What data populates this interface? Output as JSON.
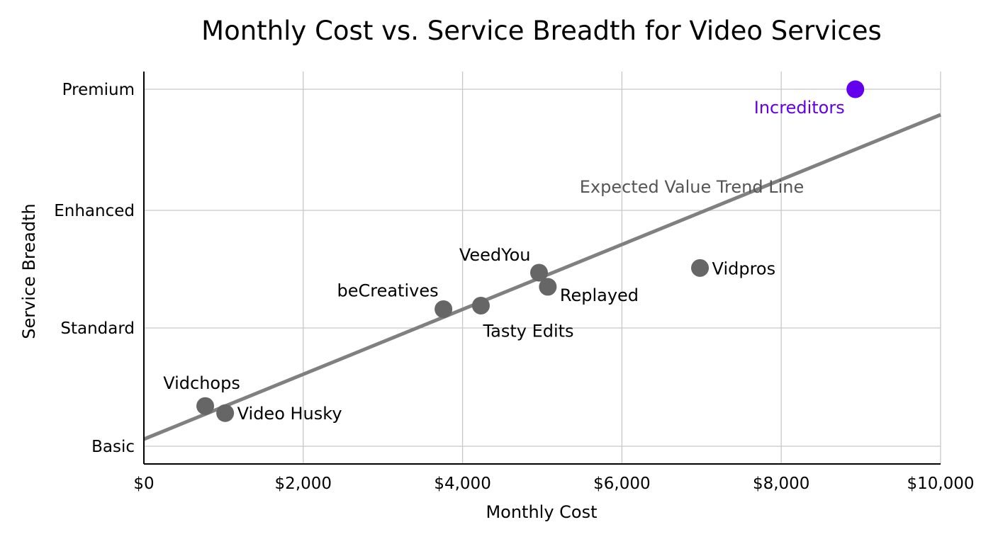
{
  "chart_data": {
    "type": "scatter",
    "title": "Monthly Cost vs. Service Breadth for Video Services",
    "xlabel": "Monthly Cost",
    "ylabel": "Service Breadth",
    "xlim": [
      0,
      10000
    ],
    "x_ticks": [
      0,
      2000,
      4000,
      6000,
      8000,
      10000
    ],
    "x_tick_labels": [
      "$0",
      "$2,000",
      "$4,000",
      "$6,000",
      "$8,000",
      "$10,000"
    ],
    "y_ticks": [
      0,
      1,
      2,
      3
    ],
    "y_tick_labels": [
      "Basic",
      "Standard",
      "Enhanced",
      "Premium"
    ],
    "grid": true,
    "legend": "none",
    "points": [
      {
        "name": "Vidchops",
        "x": 770,
        "y": 0.34,
        "color": "#666666",
        "highlight": false
      },
      {
        "name": "Video Husky",
        "x": 1020,
        "y": 0.28,
        "color": "#666666",
        "highlight": false
      },
      {
        "name": "beCreatives",
        "x": 3760,
        "y": 1.16,
        "color": "#666666",
        "highlight": false
      },
      {
        "name": "Tasty Edits",
        "x": 4230,
        "y": 1.19,
        "color": "#666666",
        "highlight": false
      },
      {
        "name": "VeedYou",
        "x": 4960,
        "y": 1.47,
        "color": "#666666",
        "highlight": false
      },
      {
        "name": "Replayed",
        "x": 5070,
        "y": 1.35,
        "color": "#666666",
        "highlight": false
      },
      {
        "name": "Vidpros",
        "x": 6980,
        "y": 1.51,
        "color": "#666666",
        "highlight": false
      },
      {
        "name": "Increditors",
        "x": 8930,
        "y": 3.0,
        "color": "#6200EE",
        "highlight": true
      }
    ],
    "trend_line": {
      "label": "Expected Value Trend Line",
      "color": "#808080",
      "start": {
        "x": 0,
        "y": 0.06
      },
      "end": {
        "x": 10000,
        "y": 2.8
      }
    },
    "annotations": [
      "Expected Value Trend Line",
      "Increditors"
    ]
  },
  "colors": {
    "point": "#666666",
    "highlight": "#6200EE",
    "trend": "#808080",
    "grid": "#c8c8c8",
    "axis": "#000000"
  }
}
